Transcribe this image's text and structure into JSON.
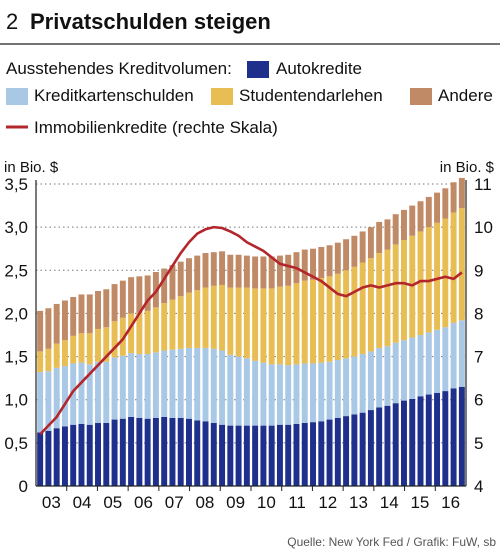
{
  "header": {
    "number": "2",
    "title": "Privatschulden steigen"
  },
  "legend": {
    "prefix": "Ausstehendes Kreditvolumen:",
    "auto": "Autokredite",
    "kredit": "Kreditkartenschulden",
    "student": "Studentendarlehen",
    "andere": "Andere",
    "immo": "Immobilienkredite (rechte Skala)"
  },
  "axes": {
    "left_unit": "in Bio. $",
    "right_unit": "in Bio. $"
  },
  "source": "Quelle: New York Fed / Grafik: FuW, sb",
  "colors": {
    "auto": "#1e2f8c",
    "kredit": "#a9c8e6",
    "student": "#e8be54",
    "andere": "#c08a66",
    "immo": "#b3262b",
    "grid": "#777777"
  },
  "chart_data": {
    "type": "bar",
    "stacked": true,
    "x_tick_labels": [
      "03",
      "04",
      "05",
      "06",
      "07",
      "08",
      "09",
      "10",
      "11",
      "12",
      "13",
      "14",
      "15",
      "16"
    ],
    "y_left": {
      "min": 0,
      "max": 3.5,
      "ticks": [
        "0",
        "0,5",
        "1,0",
        "1,5",
        "2,0",
        "2,5",
        "3,0",
        "3,5"
      ]
    },
    "y_right": {
      "min": 4,
      "max": 11,
      "ticks": [
        "4",
        "5",
        "6",
        "7",
        "8",
        "9",
        "10",
        "11"
      ]
    },
    "grid": "horizontal dotted",
    "series": [
      {
        "name": "Autokredite",
        "key": "auto",
        "values": [
          0.62,
          0.64,
          0.67,
          0.69,
          0.71,
          0.72,
          0.71,
          0.73,
          0.73,
          0.77,
          0.78,
          0.8,
          0.79,
          0.78,
          0.79,
          0.8,
          0.79,
          0.79,
          0.78,
          0.76,
          0.75,
          0.73,
          0.71,
          0.7,
          0.7,
          0.7,
          0.7,
          0.7,
          0.7,
          0.71,
          0.71,
          0.72,
          0.73,
          0.74,
          0.75,
          0.77,
          0.79,
          0.81,
          0.83,
          0.85,
          0.88,
          0.91,
          0.93,
          0.96,
          0.99,
          1.01,
          1.04,
          1.06,
          1.08,
          1.1,
          1.13,
          1.15
        ]
      },
      {
        "name": "Kreditkartenschulden",
        "key": "kredit",
        "values": [
          0.7,
          0.69,
          0.7,
          0.7,
          0.71,
          0.71,
          0.7,
          0.71,
          0.71,
          0.72,
          0.73,
          0.74,
          0.74,
          0.75,
          0.76,
          0.77,
          0.79,
          0.8,
          0.82,
          0.84,
          0.85,
          0.86,
          0.86,
          0.82,
          0.8,
          0.78,
          0.75,
          0.73,
          0.71,
          0.7,
          0.69,
          0.69,
          0.69,
          0.68,
          0.68,
          0.67,
          0.67,
          0.67,
          0.67,
          0.68,
          0.68,
          0.69,
          0.69,
          0.7,
          0.7,
          0.71,
          0.71,
          0.72,
          0.73,
          0.74,
          0.76,
          0.77
        ]
      },
      {
        "name": "Studentendarlehen",
        "key": "student",
        "values": [
          0.24,
          0.26,
          0.28,
          0.3,
          0.32,
          0.34,
          0.36,
          0.38,
          0.4,
          0.42,
          0.44,
          0.46,
          0.48,
          0.5,
          0.52,
          0.55,
          0.58,
          0.61,
          0.64,
          0.67,
          0.7,
          0.73,
          0.76,
          0.78,
          0.8,
          0.82,
          0.84,
          0.86,
          0.88,
          0.9,
          0.92,
          0.94,
          0.96,
          0.97,
          0.98,
          0.99,
          1.0,
          1.02,
          1.04,
          1.06,
          1.08,
          1.1,
          1.12,
          1.14,
          1.16,
          1.18,
          1.2,
          1.22,
          1.24,
          1.26,
          1.28,
          1.3
        ]
      },
      {
        "name": "Andere",
        "key": "andere",
        "values": [
          0.47,
          0.47,
          0.46,
          0.46,
          0.45,
          0.45,
          0.45,
          0.44,
          0.44,
          0.43,
          0.43,
          0.42,
          0.42,
          0.41,
          0.41,
          0.4,
          0.4,
          0.4,
          0.4,
          0.4,
          0.4,
          0.39,
          0.39,
          0.38,
          0.38,
          0.37,
          0.37,
          0.37,
          0.37,
          0.36,
          0.36,
          0.36,
          0.36,
          0.36,
          0.36,
          0.36,
          0.36,
          0.36,
          0.36,
          0.36,
          0.36,
          0.36,
          0.35,
          0.35,
          0.35,
          0.35,
          0.35,
          0.35,
          0.35,
          0.35,
          0.35,
          0.35
        ]
      },
      {
        "name": "Immobilienkredite (rechte Skala)",
        "key": "immo",
        "type": "line",
        "axis": "right",
        "values": [
          5.2,
          5.4,
          5.6,
          5.9,
          6.2,
          6.4,
          6.6,
          6.8,
          7.0,
          7.2,
          7.4,
          7.7,
          8.0,
          8.3,
          8.5,
          8.8,
          9.1,
          9.4,
          9.65,
          9.85,
          9.95,
          10.0,
          9.98,
          9.9,
          9.8,
          9.65,
          9.55,
          9.45,
          9.3,
          9.15,
          9.1,
          9.05,
          8.95,
          8.85,
          8.75,
          8.6,
          8.45,
          8.4,
          8.5,
          8.6,
          8.65,
          8.6,
          8.65,
          8.7,
          8.7,
          8.65,
          8.75,
          8.75,
          8.8,
          8.85,
          8.8,
          8.95
        ]
      }
    ]
  }
}
